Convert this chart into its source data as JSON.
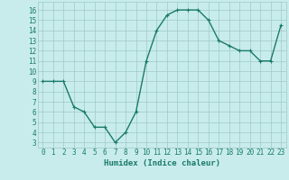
{
  "x": [
    0,
    1,
    2,
    3,
    4,
    5,
    6,
    7,
    8,
    9,
    10,
    11,
    12,
    13,
    14,
    15,
    16,
    17,
    18,
    19,
    20,
    21,
    22,
    23
  ],
  "y": [
    9,
    9,
    9,
    6.5,
    6,
    4.5,
    4.5,
    3,
    4,
    6,
    11,
    14,
    15.5,
    16,
    16,
    16,
    15,
    13,
    12.5,
    12,
    12,
    11,
    11,
    14.5
  ],
  "line_color": "#1a7a6a",
  "marker": "+",
  "marker_color": "#1a7a6a",
  "bg_color": "#c8ecec",
  "grid_color": "#a0c8c8",
  "xlabel": "Humidex (Indice chaleur)",
  "xlabel_fontsize": 6.5,
  "xlim": [
    -0.5,
    23.5
  ],
  "ylim": [
    2.5,
    16.8
  ],
  "yticks": [
    3,
    4,
    5,
    6,
    7,
    8,
    9,
    10,
    11,
    12,
    13,
    14,
    15,
    16
  ],
  "xticks": [
    0,
    1,
    2,
    3,
    4,
    5,
    6,
    7,
    8,
    9,
    10,
    11,
    12,
    13,
    14,
    15,
    16,
    17,
    18,
    19,
    20,
    21,
    22,
    23
  ],
  "tick_fontsize": 5.5,
  "tick_color": "#1a7a6a",
  "linewidth": 1.0,
  "markersize": 3.0
}
